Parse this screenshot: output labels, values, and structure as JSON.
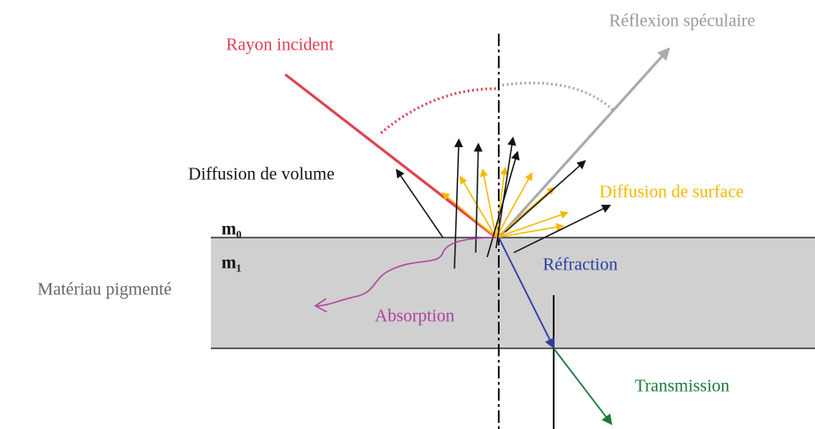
{
  "labels": {
    "incident": "Rayon incident",
    "specular": "Réflexion spéculaire",
    "volume": "Diffusion de volume",
    "surface": "Diffusion de surface",
    "m0": "m₀",
    "m1": "m₁",
    "material": "Matériau pigmenté",
    "refraction": "Réfraction",
    "absorption": "Absorption",
    "transmission": "Transmission"
  }
}
